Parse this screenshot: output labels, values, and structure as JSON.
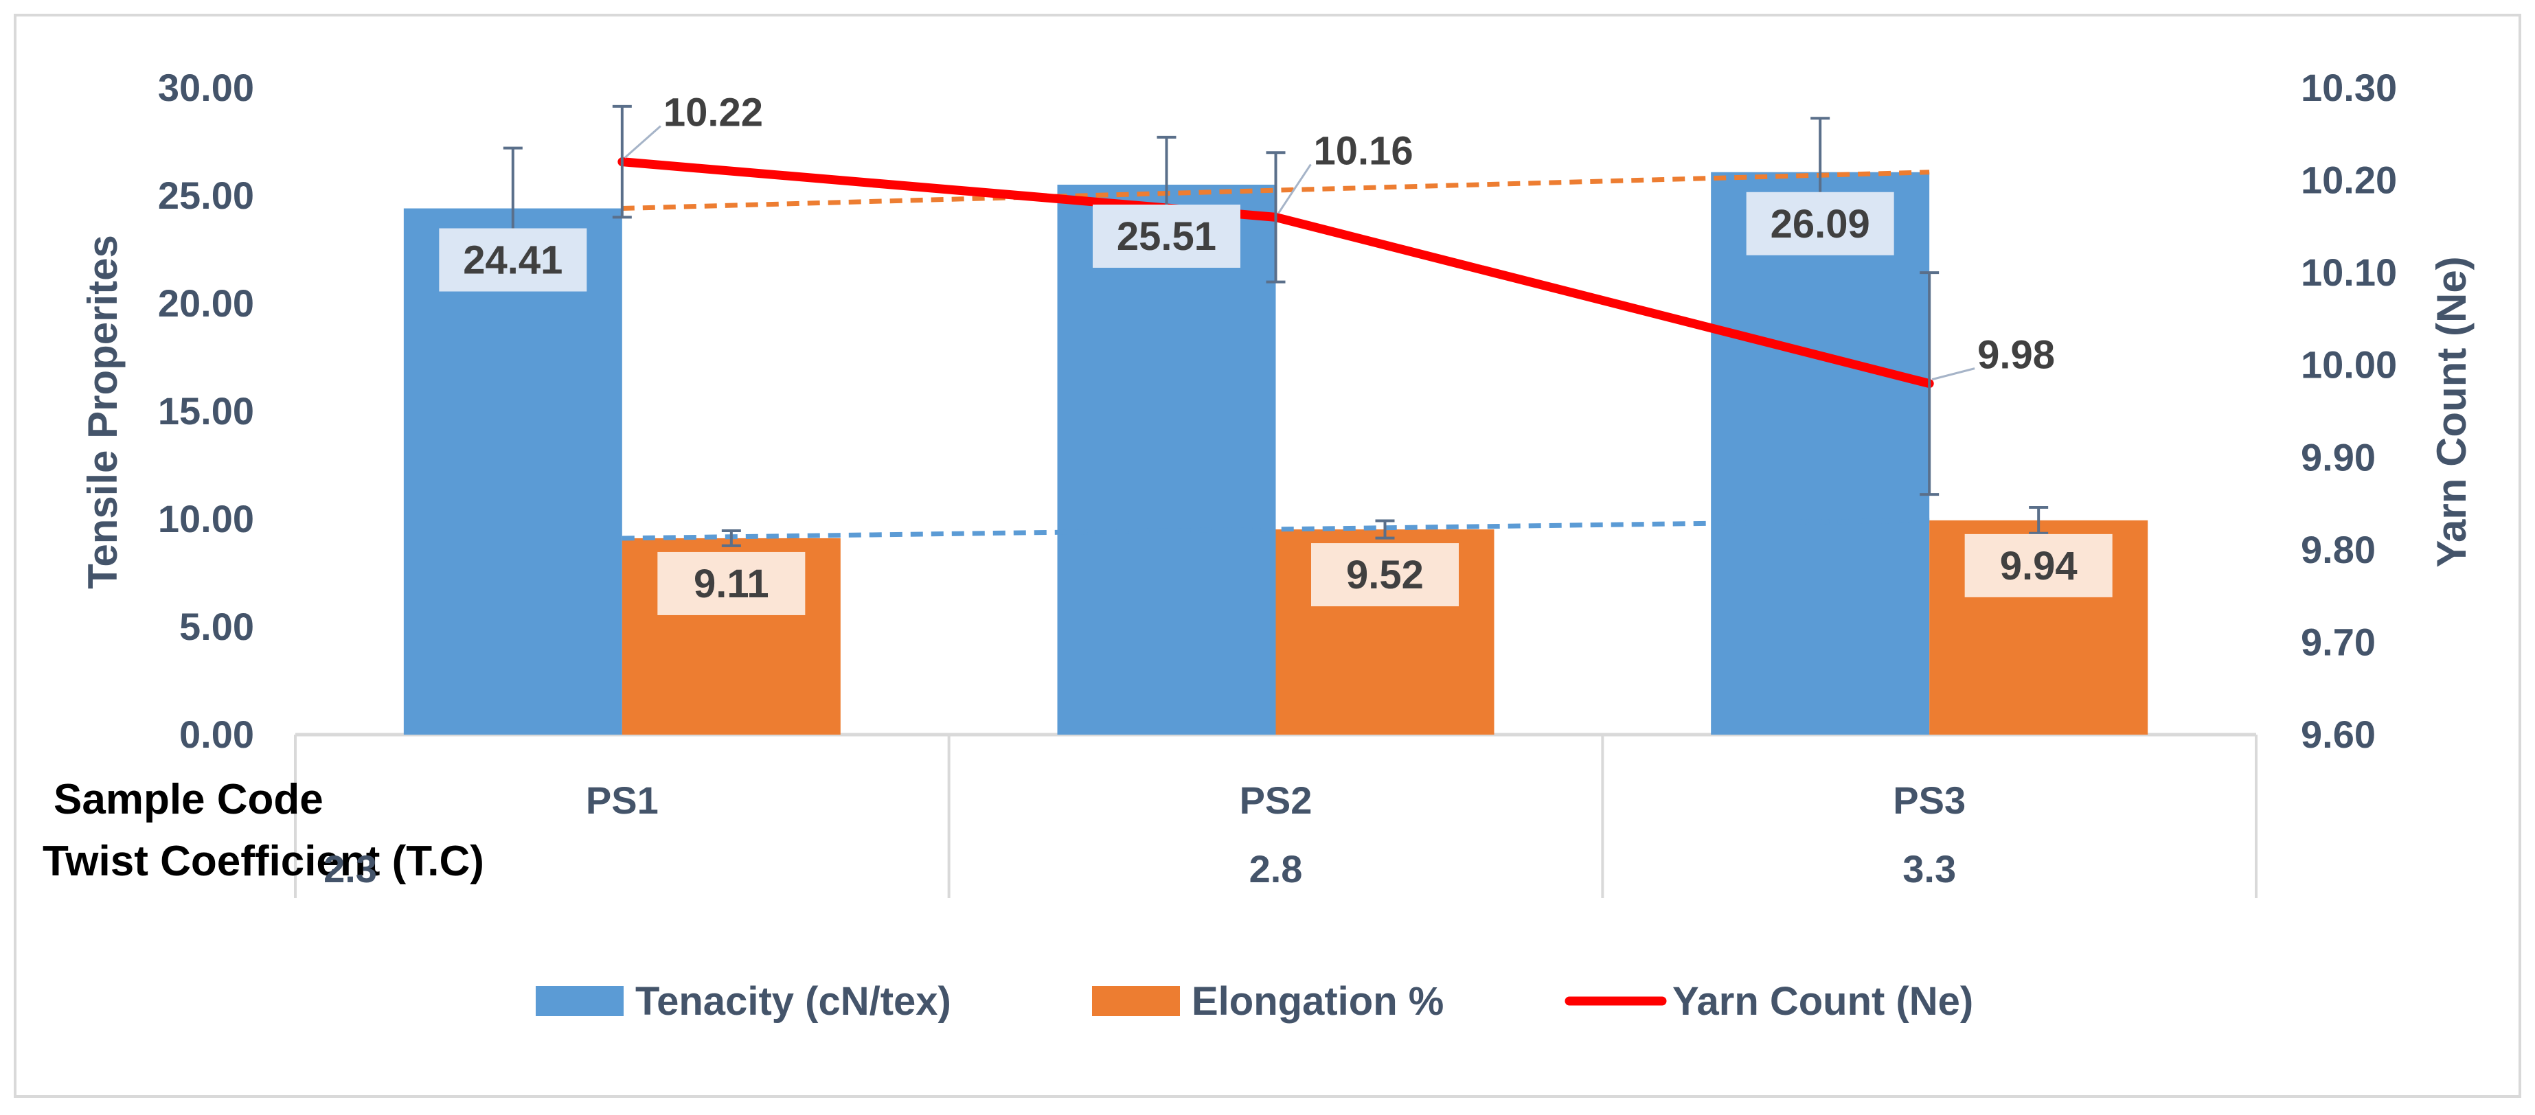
{
  "colors": {
    "tenacity": "#5b9bd5",
    "elongation": "#ed7d31",
    "yarn_count": "#ff0000",
    "axis_text": "#44546a",
    "gridline": "#d9d9d9",
    "label_bg": "#dbe6f4",
    "label_bg_orange": "#fbe5d6",
    "error_bar": "#5a6f8a"
  },
  "chart_data": {
    "type": "bar",
    "title": "",
    "categories": [
      "PS1",
      "PS2",
      "PS3"
    ],
    "row_headers": {
      "sample_code": "Sample Code",
      "twist_coefficient": "Twist Coefficient (T.C)"
    },
    "twist_coefficients": [
      "2.3",
      "2.8",
      "3.3"
    ],
    "y_left": {
      "label": "Tensile Properites",
      "min": 0,
      "max": 30,
      "step": 5,
      "tick_labels": [
        "0.00",
        "5.00",
        "10.00",
        "15.00",
        "20.00",
        "25.00",
        "30.00"
      ]
    },
    "y_right": {
      "label": "Yarn Count (Ne)",
      "min": 9.6,
      "max": 10.3,
      "step": 0.1,
      "tick_labels": [
        "9.60",
        "9.70",
        "9.80",
        "9.90",
        "10.00",
        "10.10",
        "10.20",
        "10.30"
      ]
    },
    "series": [
      {
        "name": "Tenacity (cN/tex)",
        "kind": "bar",
        "axis": "left",
        "values": [
          24.41,
          25.51,
          26.09
        ],
        "labels": [
          "24.41",
          "25.51",
          "26.09"
        ],
        "error": [
          2.8,
          2.2,
          2.5
        ]
      },
      {
        "name": "Elongation %",
        "kind": "bar",
        "axis": "left",
        "values": [
          9.11,
          9.52,
          9.94
        ],
        "labels": [
          "9.11",
          "9.52",
          "9.94"
        ],
        "error": [
          0.35,
          0.4,
          0.6
        ]
      },
      {
        "name": "Yarn Count (Ne)",
        "kind": "line",
        "axis": "right",
        "values": [
          10.22,
          10.16,
          9.98
        ],
        "labels": [
          "10.22",
          "10.16",
          "9.98"
        ],
        "error": [
          0.06,
          0.07,
          0.12
        ]
      }
    ],
    "trendlines": [
      {
        "series": "Tenacity (cN/tex)",
        "from": 24.41,
        "to": 26.09,
        "axis": "left",
        "dashed": true
      },
      {
        "series": "Elongation %",
        "from": 9.11,
        "to": 9.94,
        "axis": "left",
        "dashed": true
      }
    ],
    "legend": {
      "position": "bottom",
      "items": [
        "Tenacity (cN/tex)",
        "Elongation %",
        "Yarn Count (Ne)"
      ]
    }
  }
}
